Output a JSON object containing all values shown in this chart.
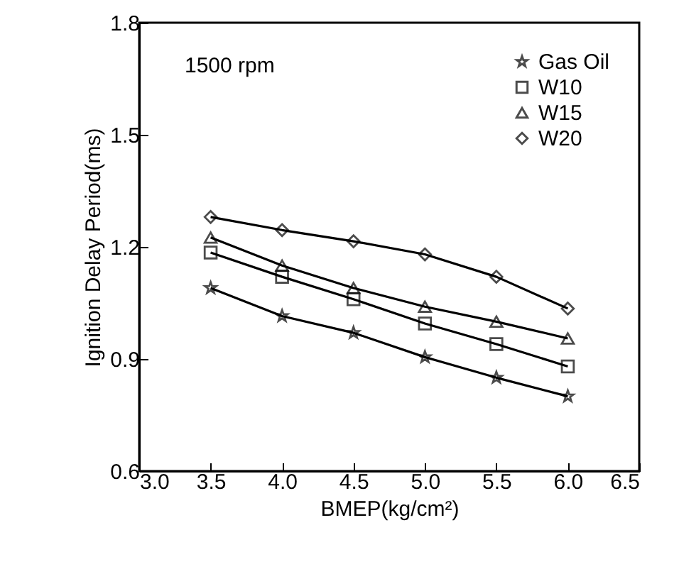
{
  "chart_data": {
    "type": "line",
    "xlabel": "BMEP(kg/cm²)",
    "ylabel": "Ignition Delay Period(ms)",
    "annotations": [
      "1500 rpm"
    ],
    "x": [
      3.5,
      4.0,
      4.5,
      5.0,
      5.5,
      6.0
    ],
    "series": [
      {
        "name": "Gas Oil",
        "color": "#000000",
        "marker": "star",
        "values": [
          1.09,
          1.015,
          0.97,
          0.905,
          0.85,
          0.8
        ]
      },
      {
        "name": "W10",
        "color": "#000000",
        "marker": "square",
        "values": [
          1.185,
          1.12,
          1.06,
          0.995,
          0.94,
          0.88
        ]
      },
      {
        "name": "W15",
        "color": "#000000",
        "marker": "triangle",
        "values": [
          1.225,
          1.15,
          1.09,
          1.04,
          1.0,
          0.955
        ]
      },
      {
        "name": "W20",
        "color": "#000000",
        "marker": "diamond",
        "values": [
          1.28,
          1.245,
          1.215,
          1.18,
          1.12,
          1.035
        ]
      }
    ],
    "xlim": [
      3.0,
      6.5
    ],
    "xticks": [
      {
        "value": 3,
        "label": "3.0"
      },
      {
        "value": 3.5,
        "label": "3.5"
      },
      {
        "value": 4,
        "label": "4.0"
      },
      {
        "value": 4.5,
        "label": "4.5"
      },
      {
        "value": 5,
        "label": "5.0"
      },
      {
        "value": 5.5,
        "label": "5.5"
      },
      {
        "value": 6,
        "label": "6.0"
      },
      {
        "value": 6.5,
        "label": "6.5"
      }
    ],
    "ylim": [
      0.6,
      1.8
    ],
    "yticks": [
      0.6,
      0.9,
      1.2,
      1.5,
      1.8
    ],
    "grid": false,
    "legend": "top right",
    "line_style": "solid"
  }
}
